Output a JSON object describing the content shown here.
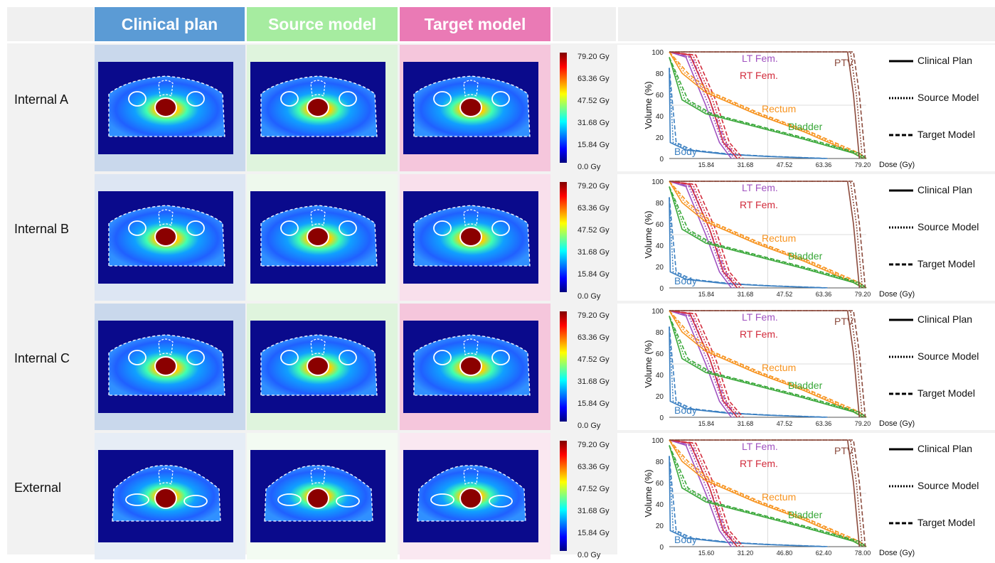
{
  "headers": {
    "clinical": "Clinical plan",
    "source": "Source model",
    "target": "Target model"
  },
  "colors": {
    "clinical": "#5b9bd5",
    "source": "#a6eca0",
    "target": "#ea7ab5",
    "body": "#3a7fc1",
    "rectum": "#f7931e",
    "bladder": "#3aa83a",
    "lt_fem": "#a052c0",
    "rt_fem": "#d22c3c",
    "ptv": "#8b4a3c"
  },
  "rows": [
    {
      "label": "Internal A",
      "colorbar": [
        "79.20 Gy",
        "63.36 Gy",
        "47.52 Gy",
        "31.68 Gy",
        "15.84 Gy",
        "0.0 Gy"
      ],
      "dvh": {
        "ylabel": "Volume (%)",
        "xlabel": "Dose (Gy)",
        "yticks": [
          "100",
          "80",
          "60",
          "40",
          "20",
          "0"
        ],
        "xticks": [
          "15.84",
          "31.68",
          "47.52",
          "63.36",
          "79.20"
        ],
        "labels": {
          "lt": "LT Fem.",
          "rt": "RT Fem.",
          "ptv": "PTV",
          "rectum": "Rectum",
          "bladder": "Bladder",
          "body": "Body"
        }
      }
    },
    {
      "label": "Internal B",
      "colorbar": [
        "79.20 Gy",
        "63.36 Gy",
        "47.52 Gy",
        "31.68 Gy",
        "15.84 Gy",
        "0.0 Gy"
      ],
      "dvh": {
        "ylabel": "Volume (%)",
        "xlabel": "Dose (Gy)",
        "yticks": [
          "100",
          "80",
          "60",
          "40",
          "20",
          "0"
        ],
        "xticks": [
          "15.84",
          "31.68",
          "47.52",
          "63.36",
          "79.20"
        ],
        "labels": {
          "lt": "LT Fem.",
          "rt": "RT Fem.",
          "ptv": "",
          "rectum": "Rectum",
          "bladder": "Bladder",
          "body": "Body"
        }
      }
    },
    {
      "label": "Internal C",
      "colorbar": [
        "79.20 Gy",
        "63.36 Gy",
        "47.52 Gy",
        "31.68 Gy",
        "15.84 Gy",
        "0.0 Gy"
      ],
      "dvh": {
        "ylabel": "Volume (%)",
        "xlabel": "Dose (Gy)",
        "yticks": [
          "100",
          "80",
          "60",
          "40",
          "20",
          "0"
        ],
        "xticks": [
          "15.84",
          "31.68",
          "47.52",
          "63.36",
          "79.20"
        ],
        "labels": {
          "lt": "LT Fem.",
          "rt": "RT Fem.",
          "ptv": "PTV",
          "rectum": "Rectum",
          "bladder": "Bladder",
          "body": "Body"
        }
      }
    },
    {
      "label": "External",
      "colorbar": [
        "79.20 Gy",
        "63.36 Gy",
        "47.52 Gy",
        "31.68 Gy",
        "15.84 Gy",
        "0.0 Gy"
      ],
      "dvh": {
        "ylabel": "Volume (%)",
        "xlabel": "Dose (Gy)",
        "yticks": [
          "100",
          "80",
          "60",
          "40",
          "20",
          "0"
        ],
        "xticks": [
          "15.60",
          "31.20",
          "46.80",
          "62.40",
          "78.00"
        ],
        "labels": {
          "lt": "LT Fem.",
          "rt": "RT Fem.",
          "ptv": "PTV",
          "rectum": "Rectum",
          "bladder": "Bladder",
          "body": "Body"
        }
      }
    }
  ],
  "legend": {
    "clinical": "Clinical Plan",
    "source": "Source Model",
    "target": "Target Model"
  }
}
